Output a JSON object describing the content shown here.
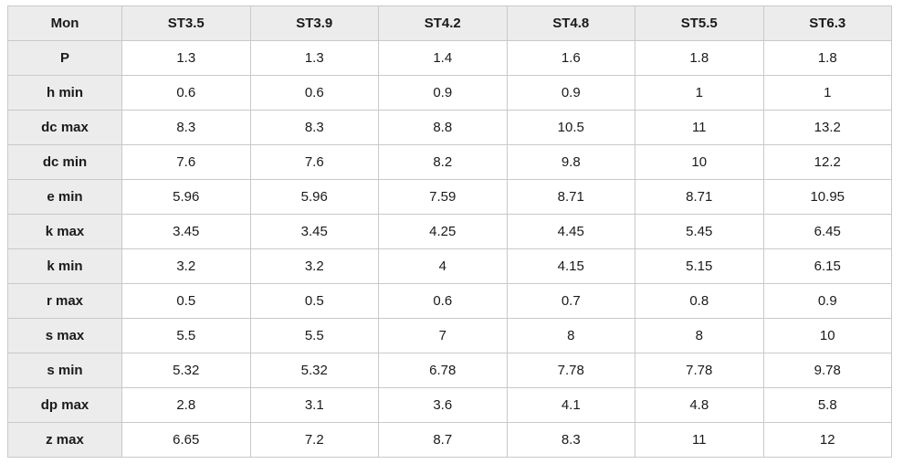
{
  "table": {
    "headers": [
      "Mon",
      "ST3.5",
      "ST3.9",
      "ST4.2",
      "ST4.8",
      "ST5.5",
      "ST6.3"
    ],
    "rows": [
      {
        "label": "P",
        "values": [
          "1.3",
          "1.3",
          "1.4",
          "1.6",
          "1.8",
          "1.8"
        ]
      },
      {
        "label": "h min",
        "values": [
          "0.6",
          "0.6",
          "0.9",
          "0.9",
          "1",
          "1"
        ]
      },
      {
        "label": "dc max",
        "values": [
          "8.3",
          "8.3",
          "8.8",
          "10.5",
          "11",
          "13.2"
        ]
      },
      {
        "label": "dc min",
        "values": [
          "7.6",
          "7.6",
          "8.2",
          "9.8",
          "10",
          "12.2"
        ]
      },
      {
        "label": "e min",
        "values": [
          "5.96",
          "5.96",
          "7.59",
          "8.71",
          "8.71",
          "10.95"
        ]
      },
      {
        "label": "k max",
        "values": [
          "3.45",
          "3.45",
          "4.25",
          "4.45",
          "5.45",
          "6.45"
        ]
      },
      {
        "label": "k min",
        "values": [
          "3.2",
          "3.2",
          "4",
          "4.15",
          "5.15",
          "6.15"
        ]
      },
      {
        "label": "r max",
        "values": [
          "0.5",
          "0.5",
          "0.6",
          "0.7",
          "0.8",
          "0.9"
        ]
      },
      {
        "label": "s max",
        "values": [
          "5.5",
          "5.5",
          "7",
          "8",
          "8",
          "10"
        ]
      },
      {
        "label": "s min",
        "values": [
          "5.32",
          "5.32",
          "6.78",
          "7.78",
          "7.78",
          "9.78"
        ]
      },
      {
        "label": "dp max",
        "values": [
          "2.8",
          "3.1",
          "3.6",
          "4.1",
          "4.8",
          "5.8"
        ]
      },
      {
        "label": "z max",
        "values": [
          "6.65",
          "7.2",
          "8.7",
          "8.3",
          "11",
          "12"
        ]
      }
    ]
  }
}
